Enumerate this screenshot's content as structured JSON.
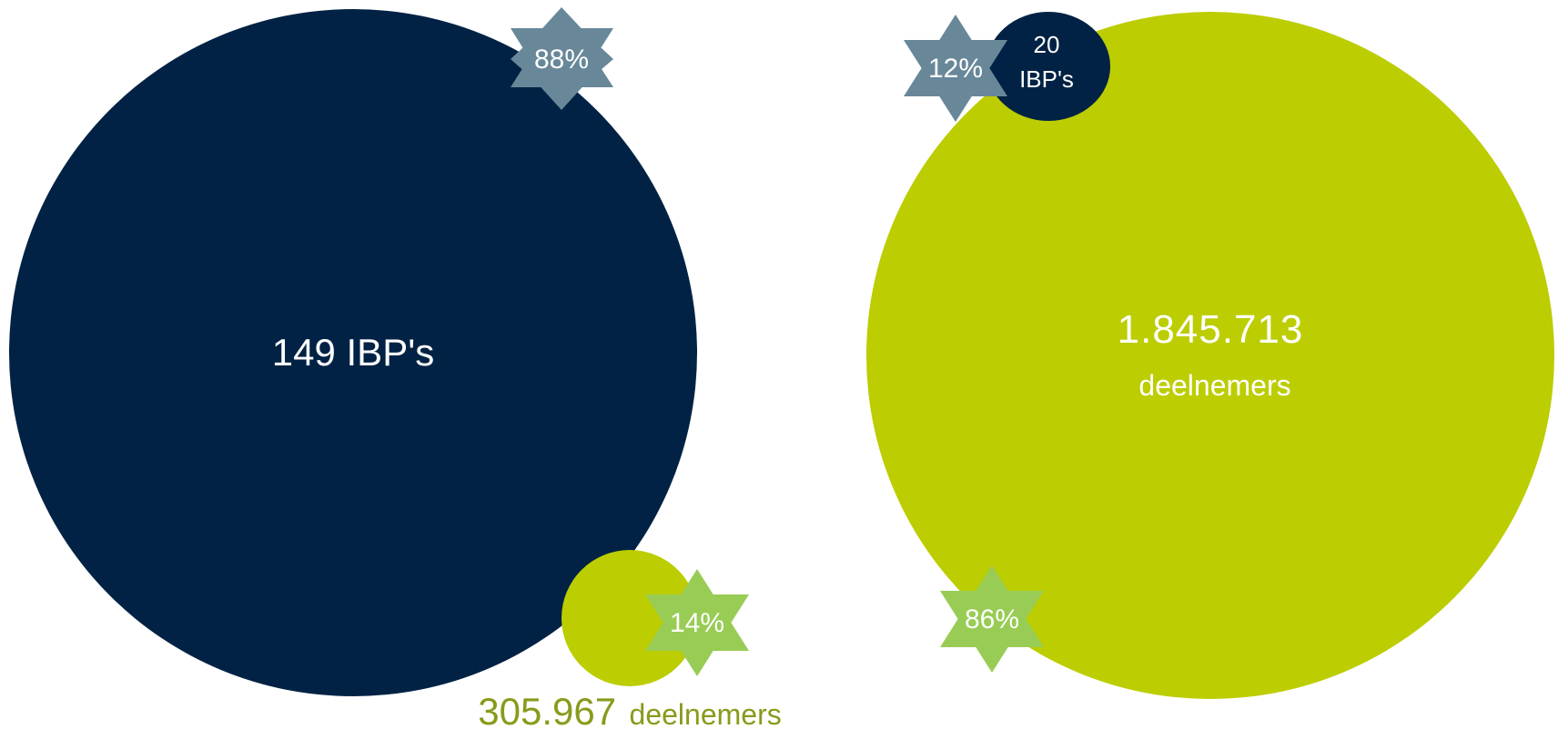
{
  "left": {
    "main_circle_label": "149 IBP's",
    "star_top_label": "88%",
    "small_circle": {
      "star_label": "14%",
      "value": "305.967",
      "unit": "deelnemers"
    }
  },
  "right": {
    "main_value": "1.845.713",
    "main_unit": "deelnemers",
    "star_top_label": "12%",
    "small_circle": {
      "line1": "20",
      "line2": "IBP's"
    },
    "star_bottom_label": "86%"
  },
  "colors": {
    "navy": "#012244",
    "lime": "#bccd02",
    "slate_star": "#688899",
    "green_star": "#98cc55",
    "olive_text": "#8a9a1b",
    "white": "#ffffff"
  }
}
